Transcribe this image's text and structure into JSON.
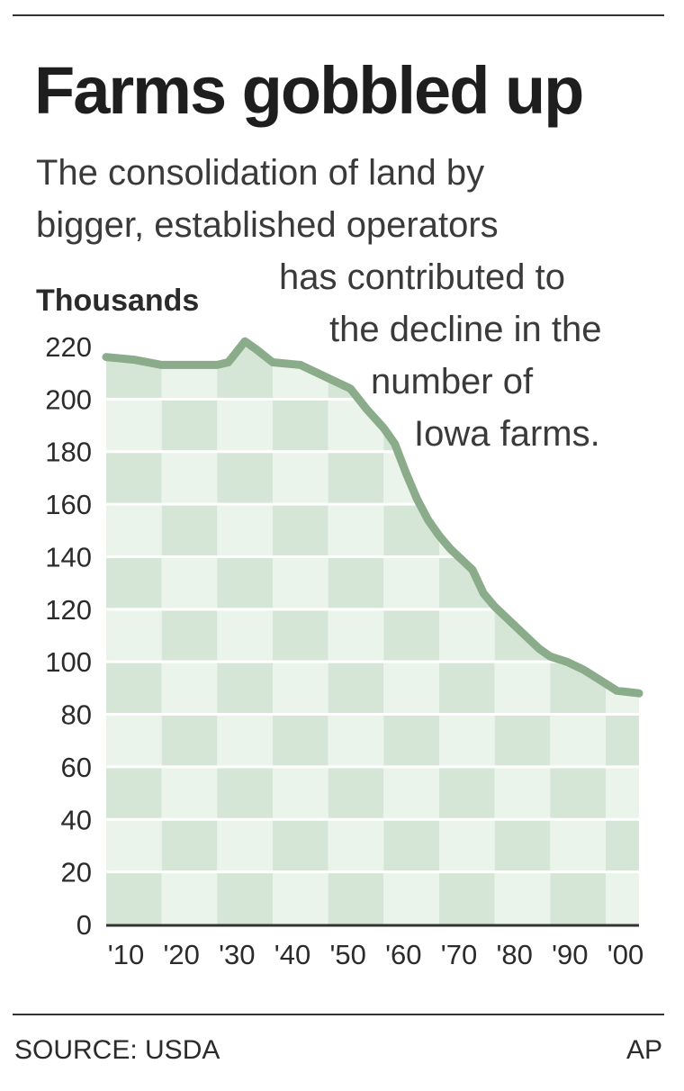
{
  "title": "Farms gobbled up",
  "subtitle_lines": [
    "The consolidation of land by",
    "bigger, established operators",
    "has contributed to",
    "the decline in the",
    "number of",
    "Iowa farms."
  ],
  "footer": {
    "source": "SOURCE: USDA",
    "credit": "AP"
  },
  "colors": {
    "line": "#8aac8a",
    "band_dark": "#d6e6d6",
    "band_light": "#eaf4ea",
    "text": "#2b2b2b"
  },
  "chart_data": {
    "type": "area",
    "ylabel": "Thousands",
    "xlabel": "",
    "ylim": [
      0,
      220
    ],
    "xlim": [
      1910,
      2006
    ],
    "yticks": [
      0,
      20,
      40,
      60,
      80,
      100,
      120,
      140,
      160,
      180,
      200,
      220
    ],
    "xtick_values": [
      1910,
      1920,
      1930,
      1940,
      1950,
      1960,
      1970,
      1980,
      1990,
      2000
    ],
    "xtick_labels": [
      "'10",
      "'20",
      "'30",
      "'40",
      "'50",
      "'60",
      "'70",
      "'80",
      "'90",
      "'00"
    ],
    "grid": true,
    "legend": "none",
    "series": [
      {
        "x": [
          1910,
          1915,
          1920,
          1925,
          1930,
          1932,
          1935,
          1937,
          1940,
          1945,
          1948,
          1950,
          1954,
          1957,
          1960,
          1962,
          1964,
          1966,
          1968,
          1970,
          1972,
          1974,
          1976,
          1978,
          1980,
          1984,
          1988,
          1990,
          1993,
          1996,
          1999,
          2002,
          2006
        ],
        "values": [
          216,
          215,
          213,
          213,
          213,
          214,
          222,
          219,
          214,
          213,
          210,
          208,
          204,
          196,
          189,
          183,
          172,
          162,
          154,
          148,
          143,
          139,
          135,
          126,
          121,
          113,
          105,
          102,
          100,
          97,
          93,
          89,
          88
        ]
      }
    ]
  }
}
